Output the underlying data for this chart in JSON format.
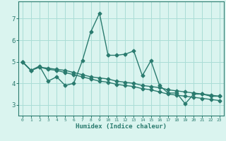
{
  "xlabel": "Humidex (Indice chaleur)",
  "line_color": "#2a7b6f",
  "bg_color": "#daf4ef",
  "grid_color": "#aaddd6",
  "xlim": [
    -0.5,
    23.5
  ],
  "ylim": [
    2.5,
    7.8
  ],
  "yticks": [
    3,
    4,
    5,
    6,
    7
  ],
  "xticks": [
    0,
    1,
    2,
    3,
    4,
    5,
    6,
    7,
    8,
    9,
    10,
    11,
    12,
    13,
    14,
    15,
    16,
    17,
    18,
    19,
    20,
    21,
    22,
    23
  ],
  "line1_x": [
    0,
    1,
    2,
    3,
    4,
    5,
    6,
    7,
    8,
    9,
    10,
    11,
    12,
    13,
    14,
    15,
    16,
    17,
    18,
    19,
    20,
    21,
    22,
    23
  ],
  "line1_y": [
    5.0,
    4.6,
    4.8,
    4.1,
    4.3,
    3.9,
    4.0,
    5.05,
    6.4,
    7.25,
    5.3,
    5.3,
    5.35,
    5.5,
    4.35,
    5.05,
    3.9,
    3.55,
    3.55,
    3.05,
    3.5,
    3.5,
    3.4,
    3.4
  ],
  "line2_x": [
    0,
    1,
    2,
    3,
    4,
    5,
    6,
    7,
    8,
    9,
    10,
    11,
    12,
    13,
    14,
    15,
    16,
    17,
    18,
    19,
    20,
    21,
    22,
    23
  ],
  "line2_y": [
    5.0,
    4.6,
    4.75,
    4.7,
    4.65,
    4.6,
    4.5,
    4.4,
    4.3,
    4.25,
    4.2,
    4.1,
    4.05,
    4.0,
    3.9,
    3.85,
    3.8,
    3.7,
    3.65,
    3.6,
    3.55,
    3.5,
    3.45,
    3.4
  ],
  "line3_x": [
    0,
    1,
    2,
    3,
    4,
    5,
    6,
    7,
    8,
    9,
    10,
    11,
    12,
    13,
    14,
    15,
    16,
    17,
    18,
    19,
    20,
    21,
    22,
    23
  ],
  "line3_y": [
    5.0,
    4.6,
    4.75,
    4.65,
    4.6,
    4.5,
    4.4,
    4.3,
    4.2,
    4.1,
    4.05,
    3.95,
    3.9,
    3.85,
    3.75,
    3.7,
    3.6,
    3.5,
    3.45,
    3.4,
    3.35,
    3.3,
    3.25,
    3.2
  ],
  "marker": "D",
  "markersize": 2.5,
  "linewidth": 1.0
}
